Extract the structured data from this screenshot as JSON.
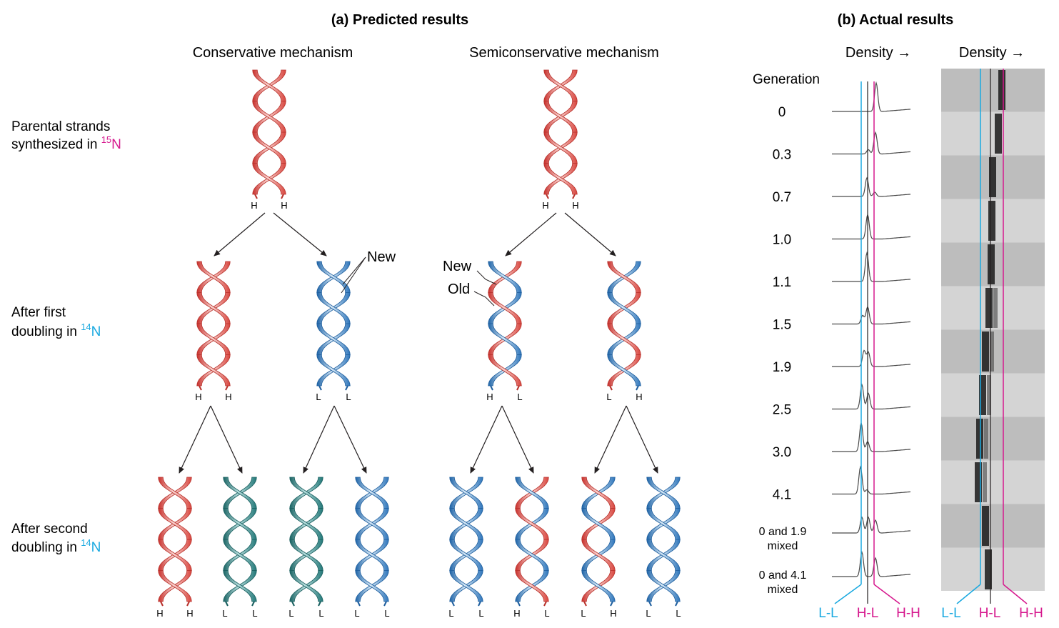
{
  "headers": {
    "predicted": "(a) Predicted results",
    "actual": "(b) Actual results"
  },
  "mechanisms": {
    "conservative": "Conservative mechanism",
    "semiconservative": "Semiconservative mechanism"
  },
  "rows": {
    "parental": [
      "Parental strands",
      "synthesized in ",
      "15",
      "N"
    ],
    "first": [
      "After first",
      "doubling in ",
      "14",
      "N"
    ],
    "second": [
      "After second",
      "doubling in ",
      "14",
      "N"
    ]
  },
  "callouts": {
    "new": "New",
    "old": "Old"
  },
  "strand_labels": {
    "cons_parent": [
      "H",
      "H"
    ],
    "semi_parent": [
      "H",
      "H"
    ],
    "cons_g1": [
      [
        "H",
        "H"
      ],
      [
        "L",
        "L"
      ]
    ],
    "semi_g1": [
      [
        "H",
        "L"
      ],
      [
        "L",
        "H"
      ]
    ],
    "cons_g2": [
      [
        "H",
        "H"
      ],
      [
        "L",
        "L"
      ],
      [
        "L",
        "L"
      ],
      [
        "L",
        "L"
      ]
    ],
    "semi_g2": [
      [
        "L",
        "L"
      ],
      [
        "H",
        "L"
      ],
      [
        "L",
        "H"
      ],
      [
        "L",
        "L"
      ]
    ]
  },
  "density_label": "Density →",
  "generation_header": "Generation",
  "generations": [
    "0",
    "0.3",
    "0.7",
    "1.0",
    "1.1",
    "1.5",
    "1.9",
    "2.5",
    "3.0",
    "4.1"
  ],
  "mixed": [
    [
      "0 and 1.9",
      "mixed"
    ],
    [
      "0 and 4.1",
      "mixed"
    ]
  ],
  "bottom_labels": [
    "L-L",
    "H-L",
    "H-H"
  ],
  "colors": {
    "heavy": "#e8524d",
    "light": "#4a90cc",
    "teal": "#2e8c8c",
    "cyan": "#1aa9e0",
    "magenta": "#d6188e",
    "text": "#231f20"
  }
}
